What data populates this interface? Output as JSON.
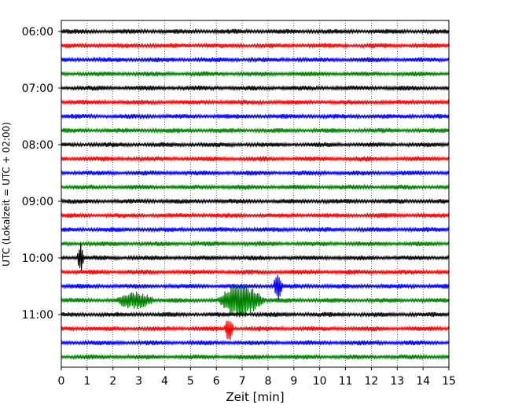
{
  "chart_data": {
    "type": "line",
    "xlabel": "Zeit  [min]",
    "ylabel": "UTC (Lokalzeit = UTC + 02:00)",
    "xlim": [
      0,
      15
    ],
    "x_ticks": [
      "0",
      "1",
      "2",
      "3",
      "4",
      "5",
      "6",
      "7",
      "8",
      "9",
      "10",
      "11",
      "12",
      "13",
      "14",
      "15"
    ],
    "y_tick_labels": [
      "06:00",
      "07:00",
      "08:00",
      "09:00",
      "10:00",
      "11:00"
    ],
    "grid": "vertical dotted lines at each minute",
    "trace_interval_minutes": 15,
    "trace_start_times": [
      "06:00",
      "06:15",
      "06:30",
      "06:45",
      "07:00",
      "07:15",
      "07:30",
      "07:45",
      "08:00",
      "08:15",
      "08:30",
      "08:45",
      "09:00",
      "09:15",
      "09:30",
      "09:45",
      "10:00",
      "10:15",
      "10:30",
      "10:45",
      "11:00",
      "11:15",
      "11:30",
      "11:45"
    ],
    "trace_colors": [
      "#000000",
      "#ff0000",
      "#0000ff",
      "#008000"
    ],
    "events": [
      {
        "trace_start": "10:00",
        "minute_start": 0.6,
        "minute_end": 0.9,
        "peak_amplitude": 2.6
      },
      {
        "trace_start": "10:30",
        "minute_start": 8.2,
        "minute_end": 8.6,
        "peak_amplitude": 2.6
      },
      {
        "trace_start": "10:45",
        "minute_start": 2.0,
        "minute_end": 3.8,
        "peak_amplitude": 1.6
      },
      {
        "trace_start": "10:45",
        "minute_start": 6.0,
        "minute_end": 8.0,
        "peak_amplitude": 3.0
      },
      {
        "trace_start": "11:15",
        "minute_start": 6.3,
        "minute_end": 6.7,
        "peak_amplitude": 2.2
      }
    ]
  }
}
